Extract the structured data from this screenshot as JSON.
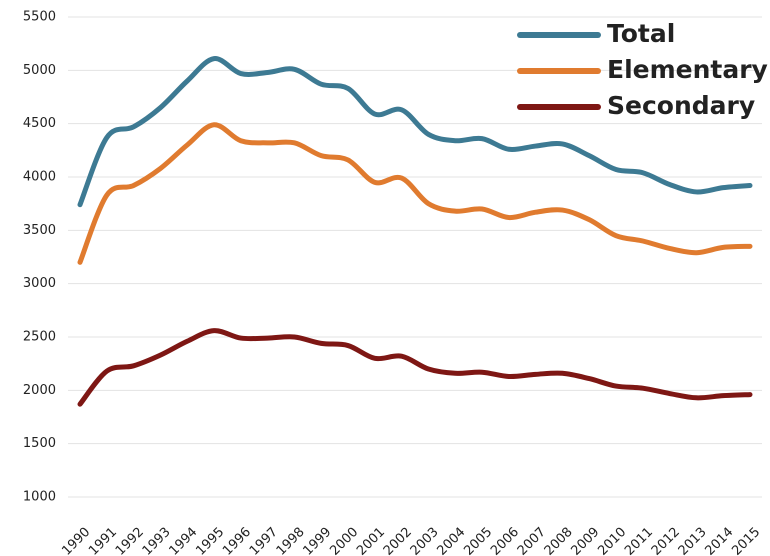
{
  "chart_data": {
    "type": "line",
    "categories": [
      "1990",
      "1991",
      "1992",
      "1993",
      "1994",
      "1995",
      "1996",
      "1997",
      "1998",
      "1999",
      "2000",
      "2001",
      "2002",
      "2003",
      "2004",
      "2005",
      "2006",
      "2007",
      "2008",
      "2009",
      "2010",
      "2011",
      "2012",
      "2013",
      "2014",
      "2015"
    ],
    "series": [
      {
        "name": "Total",
        "color": "#3d7a93",
        "values": [
          3740,
          4370,
          4470,
          4650,
          4900,
          5110,
          4970,
          4980,
          5010,
          4870,
          4830,
          4590,
          4630,
          4400,
          4340,
          4360,
          4260,
          4290,
          4310,
          4200,
          4070,
          4040,
          3930,
          3860,
          3900,
          3920
        ]
      },
      {
        "name": "Elementary",
        "color": "#e07b2f",
        "values": [
          3200,
          3830,
          3920,
          4080,
          4300,
          4490,
          4340,
          4320,
          4320,
          4200,
          4160,
          3950,
          3990,
          3750,
          3680,
          3700,
          3620,
          3670,
          3690,
          3600,
          3450,
          3400,
          3330,
          3290,
          3340,
          3350
        ]
      },
      {
        "name": "Secondary",
        "color": "#7e1714",
        "values": [
          1870,
          2180,
          2230,
          2330,
          2460,
          2560,
          2490,
          2490,
          2500,
          2440,
          2420,
          2300,
          2320,
          2200,
          2160,
          2170,
          2130,
          2150,
          2160,
          2110,
          2040,
          2020,
          1970,
          1930,
          1950,
          1960
        ]
      }
    ],
    "ylim": [
      1000,
      5500
    ],
    "yticks": [
      1000,
      1500,
      2000,
      2500,
      3000,
      3500,
      4000,
      4500,
      5000,
      5500
    ],
    "grid": true,
    "legend": "top-right"
  }
}
